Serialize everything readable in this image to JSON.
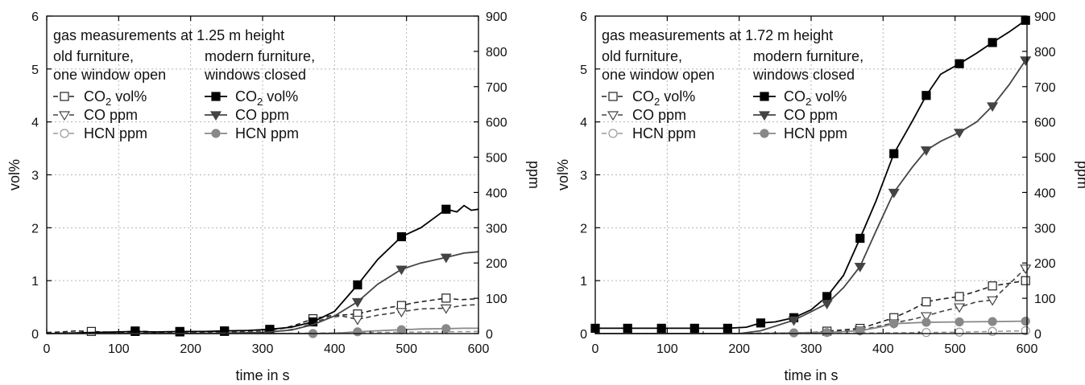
{
  "chart_data": [
    {
      "type": "line",
      "panel": "left",
      "title": "gas measurements at 1.25 m height",
      "xlabel": "time in s",
      "ylabel_left": "vol%",
      "ylabel_right": "ppm",
      "xlim": [
        0,
        600
      ],
      "ylim_left": [
        0,
        6
      ],
      "ylim_right": [
        0,
        900
      ],
      "x_ticks": [
        "0",
        "100",
        "200",
        "300",
        "400",
        "500",
        "600"
      ],
      "y_left_ticks": [
        "0",
        "1",
        "2",
        "3",
        "4",
        "5",
        "6"
      ],
      "y_right_ticks": [
        "0",
        "100",
        "200",
        "300",
        "400",
        "500",
        "600",
        "700",
        "800",
        "900"
      ],
      "grid": true,
      "legend_placement": "top-left",
      "legend_groups": [
        {
          "heading": [
            "old furniture,",
            "one window open"
          ],
          "entries": [
            {
              "sub": [
                "CO",
                "2",
                " vol%"
              ]
            },
            {
              "sub": [
                "CO ppm"
              ]
            },
            {
              "sub": [
                "HCN ppm"
              ]
            }
          ]
        },
        {
          "heading": [
            "modern furniture,",
            "windows closed"
          ],
          "entries": [
            {
              "sub": [
                "CO",
                "2",
                " vol%"
              ]
            },
            {
              "sub": [
                "CO ppm"
              ]
            },
            {
              "sub": [
                "HCN ppm"
              ]
            }
          ]
        }
      ],
      "series": [
        {
          "group": "old furniture, one window open",
          "name": "CO2 vol%",
          "axis": "left",
          "marker": "square-open",
          "dash": true,
          "color": "#222222",
          "x": [
            0,
            20,
            40,
            62,
            80,
            100,
            123,
            140,
            160,
            185,
            200,
            220,
            247,
            270,
            290,
            310,
            330,
            350,
            370,
            390,
            410,
            432,
            450,
            470,
            493,
            510,
            530,
            555,
            575,
            600
          ],
          "y": [
            0.02,
            0.03,
            0.05,
            0.04,
            0.03,
            0.02,
            0.05,
            0.04,
            0.02,
            0.03,
            0.02,
            0.04,
            0.04,
            0.05,
            0.06,
            0.07,
            0.1,
            0.18,
            0.28,
            0.33,
            0.35,
            0.37,
            0.43,
            0.48,
            0.53,
            0.58,
            0.62,
            0.67,
            0.64,
            0.66
          ],
          "marker_x": [
            62,
            123,
            185,
            247,
            310,
            370,
            432,
            493,
            555
          ]
        },
        {
          "group": "old furniture, one window open",
          "name": "CO ppm",
          "axis": "right",
          "marker": "triangle-down-open",
          "dash": true,
          "color": "#444444",
          "x": [
            0,
            50,
            100,
            150,
            200,
            250,
            300,
            330,
            350,
            370,
            390,
            410,
            432,
            460,
            493,
            520,
            555,
            580,
            600
          ],
          "y": [
            0,
            2,
            3,
            2,
            3,
            4,
            5,
            8,
            15,
            30,
            45,
            50,
            40,
            52,
            62,
            70,
            72,
            80,
            82
          ],
          "marker_x": [
            432,
            493,
            555
          ]
        },
        {
          "group": "old furniture, one window open",
          "name": "HCN ppm",
          "axis": "right",
          "marker": "circle-open",
          "dash": true,
          "color": "#999999",
          "x": [
            0,
            100,
            200,
            300,
            350,
            400,
            450,
            500,
            550,
            600
          ],
          "y": [
            0,
            0,
            0,
            0,
            1,
            2,
            3,
            4,
            5,
            6
          ],
          "marker_x": []
        },
        {
          "group": "modern furniture, windows closed",
          "name": "CO2 vol%",
          "axis": "left",
          "marker": "square-filled",
          "dash": false,
          "color": "#000000",
          "x": [
            0,
            62,
            123,
            150,
            185,
            220,
            247,
            280,
            310,
            340,
            370,
            400,
            432,
            460,
            493,
            520,
            540,
            555,
            570,
            580,
            590,
            600
          ],
          "y": [
            0.0,
            0.02,
            0.04,
            0.03,
            0.04,
            0.04,
            0.05,
            0.06,
            0.08,
            0.12,
            0.22,
            0.42,
            0.92,
            1.4,
            1.83,
            2.0,
            2.2,
            2.35,
            2.3,
            2.42,
            2.33,
            2.35
          ],
          "marker_x": [
            123,
            185,
            247,
            310,
            370,
            432,
            493,
            555
          ]
        },
        {
          "group": "modern furniture, windows closed",
          "name": "CO ppm",
          "axis": "right",
          "marker": "triangle-down-filled",
          "dash": false,
          "color": "#444444",
          "x": [
            0,
            100,
            200,
            300,
            340,
            370,
            400,
            432,
            460,
            493,
            520,
            555,
            580,
            600
          ],
          "y": [
            0,
            0,
            0,
            3,
            10,
            25,
            50,
            90,
            140,
            182,
            200,
            216,
            228,
            232
          ],
          "marker_x": [
            432,
            493,
            555
          ]
        },
        {
          "group": "modern furniture, windows closed",
          "name": "HCN ppm",
          "axis": "right",
          "marker": "circle-filled",
          "dash": false,
          "color": "#888888",
          "x": [
            0,
            300,
            370,
            400,
            432,
            460,
            493,
            520,
            555,
            580,
            600
          ],
          "y": [
            0,
            0,
            0,
            1,
            5,
            8,
            11,
            13,
            14,
            15,
            15
          ],
          "marker_x": [
            370,
            432,
            493,
            555
          ]
        }
      ]
    },
    {
      "type": "line",
      "panel": "right",
      "title": "gas measurements at 1.72 m height",
      "xlabel": "time in s",
      "ylabel_left": "vol%",
      "ylabel_right": "ppm",
      "xlim": [
        0,
        600
      ],
      "ylim_left": [
        0,
        6
      ],
      "ylim_right": [
        0,
        900
      ],
      "x_ticks": [
        "0",
        "100",
        "200",
        "300",
        "400",
        "500",
        "600"
      ],
      "y_left_ticks": [
        "0",
        "1",
        "2",
        "3",
        "4",
        "5",
        "6"
      ],
      "y_right_ticks": [
        "0",
        "100",
        "200",
        "300",
        "400",
        "500",
        "600",
        "700",
        "800",
        "900"
      ],
      "grid": true,
      "legend_placement": "top-left",
      "legend_groups": [
        {
          "heading": [
            "old furniture,",
            "one window open"
          ],
          "entries": [
            {
              "sub": [
                "CO",
                "2",
                " vol%"
              ]
            },
            {
              "sub": [
                "CO ppm"
              ]
            },
            {
              "sub": [
                "HCN ppm"
              ]
            }
          ]
        },
        {
          "heading": [
            "modern furniture,",
            "windows closed"
          ],
          "entries": [
            {
              "sub": [
                "CO",
                "2",
                " vol%"
              ]
            },
            {
              "sub": [
                "CO ppm"
              ]
            },
            {
              "sub": [
                "HCN ppm"
              ]
            }
          ]
        }
      ],
      "series": [
        {
          "group": "old furniture, one window open",
          "name": "CO2 vol%",
          "axis": "left",
          "marker": "square-open",
          "dash": true,
          "color": "#222222",
          "x": [
            0,
            100,
            200,
            300,
            370,
            415,
            440,
            460,
            480,
            506,
            530,
            552,
            575,
            598
          ],
          "y": [
            0.0,
            0.0,
            0.0,
            0.02,
            0.1,
            0.3,
            0.45,
            0.6,
            0.65,
            0.7,
            0.8,
            0.9,
            0.95,
            1.0
          ],
          "marker_x": [
            322,
            368,
            415,
            460,
            506,
            552,
            598
          ]
        },
        {
          "group": "old furniture, one window open",
          "name": "CO ppm",
          "axis": "right",
          "marker": "triangle-down-open",
          "dash": true,
          "color": "#444444",
          "x": [
            0,
            100,
            200,
            300,
            370,
            415,
            440,
            460,
            480,
            506,
            530,
            552,
            575,
            598
          ],
          "y": [
            0,
            0,
            0,
            2,
            10,
            30,
            40,
            50,
            62,
            75,
            90,
            95,
            140,
            185
          ],
          "marker_x": [
            368,
            415,
            460,
            506,
            552,
            598
          ]
        },
        {
          "group": "old furniture, one window open",
          "name": "HCN ppm",
          "axis": "right",
          "marker": "circle-open",
          "dash": true,
          "color": "#999999",
          "x": [
            0,
            100,
            200,
            300,
            400,
            460,
            506,
            552,
            598
          ],
          "y": [
            0,
            0,
            0,
            0,
            2,
            3,
            4,
            6,
            8
          ],
          "marker_x": [
            460,
            506,
            552,
            598
          ]
        },
        {
          "group": "modern furniture, windows closed",
          "name": "CO2 vol%",
          "axis": "left",
          "marker": "square-filled",
          "dash": false,
          "color": "#000000",
          "x": [
            0,
            45,
            92,
            138,
            184,
            210,
            230,
            250,
            276,
            300,
            322,
            345,
            368,
            390,
            415,
            440,
            460,
            480,
            506,
            530,
            552,
            575,
            598
          ],
          "y": [
            0.1,
            0.1,
            0.1,
            0.1,
            0.1,
            0.12,
            0.2,
            0.22,
            0.3,
            0.45,
            0.7,
            1.1,
            1.8,
            2.5,
            3.4,
            4.0,
            4.5,
            4.9,
            5.1,
            5.3,
            5.5,
            5.7,
            5.92
          ],
          "marker_x": [
            0,
            45,
            92,
            138,
            184,
            230,
            276,
            322,
            368,
            415,
            460,
            506,
            552,
            598
          ]
        },
        {
          "group": "modern furniture, windows closed",
          "name": "CO ppm",
          "axis": "right",
          "marker": "triangle-down-filled",
          "dash": false,
          "color": "#444444",
          "x": [
            0,
            100,
            200,
            230,
            276,
            300,
            322,
            345,
            368,
            390,
            415,
            440,
            460,
            480,
            506,
            530,
            552,
            575,
            598
          ],
          "y": [
            0,
            0,
            0,
            8,
            38,
            62,
            85,
            130,
            190,
            290,
            400,
            470,
            520,
            545,
            570,
            600,
            645,
            705,
            775
          ],
          "marker_x": [
            276,
            322,
            368,
            415,
            460,
            506,
            552,
            598
          ]
        },
        {
          "group": "modern furniture, windows closed",
          "name": "HCN ppm",
          "axis": "right",
          "marker": "circle-filled",
          "dash": false,
          "color": "#888888",
          "x": [
            0,
            100,
            200,
            230,
            276,
            300,
            322,
            368,
            400,
            415,
            460,
            506,
            552,
            598
          ],
          "y": [
            0,
            0,
            0,
            0,
            2,
            3,
            3,
            8,
            20,
            28,
            32,
            33,
            34,
            35
          ],
          "marker_x": [
            276,
            322,
            368,
            415,
            460,
            506,
            552,
            598
          ]
        }
      ]
    }
  ]
}
